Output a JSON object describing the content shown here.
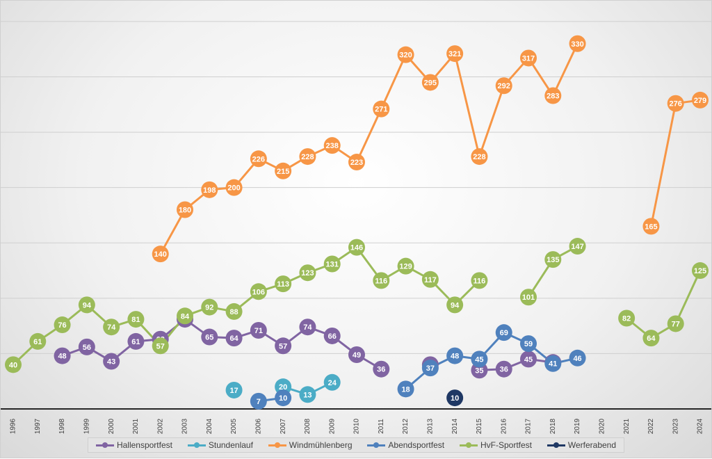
{
  "chart_data": {
    "type": "line",
    "x": [
      "1996",
      "1997",
      "1998",
      "1999",
      "2000",
      "2001",
      "2002",
      "2003",
      "2004",
      "2005",
      "2006",
      "2007",
      "2008",
      "2009",
      "2010",
      "2011",
      "2012",
      "2013",
      "2014",
      "2015",
      "2016",
      "2017",
      "2018",
      "2019",
      "2020",
      "2021",
      "2022",
      "2023",
      "2024"
    ],
    "ylim": [
      0,
      360
    ],
    "grid": true,
    "legend_position": "bottom",
    "series": [
      {
        "name": "Hallensportfest",
        "color": "#8064a2",
        "values": [
          null,
          null,
          48,
          56,
          43,
          61,
          63,
          81,
          65,
          64,
          71,
          57,
          74,
          66,
          49,
          36,
          null,
          40,
          null,
          35,
          36,
          45,
          42,
          null,
          null,
          null,
          null,
          null,
          null
        ]
      },
      {
        "name": "Stundenlauf",
        "color": "#4bacc6",
        "values": [
          null,
          null,
          null,
          null,
          null,
          null,
          null,
          null,
          null,
          17,
          null,
          20,
          13,
          24,
          null,
          null,
          null,
          null,
          null,
          null,
          null,
          null,
          null,
          null,
          null,
          null,
          null,
          null,
          null
        ]
      },
      {
        "name": "Windmühlenberg",
        "color": "#f79646",
        "values": [
          null,
          null,
          null,
          null,
          null,
          null,
          140,
          180,
          198,
          200,
          226,
          215,
          228,
          238,
          223,
          271,
          320,
          295,
          321,
          228,
          292,
          317,
          283,
          330,
          null,
          null,
          165,
          276,
          279
        ]
      },
      {
        "name": "Abendsportfest",
        "color": "#4f81bd",
        "values": [
          null,
          null,
          null,
          null,
          null,
          null,
          null,
          null,
          null,
          null,
          7,
          10,
          null,
          null,
          null,
          null,
          18,
          37,
          48,
          45,
          69,
          59,
          41,
          46,
          null,
          null,
          null,
          null,
          null
        ]
      },
      {
        "name": "HvF-Sportfest",
        "color": "#9bbb59",
        "values": [
          40,
          61,
          76,
          94,
          74,
          81,
          57,
          84,
          92,
          88,
          106,
          113,
          123,
          131,
          146,
          116,
          129,
          117,
          94,
          116,
          null,
          101,
          135,
          147,
          null,
          82,
          64,
          77,
          125
        ]
      },
      {
        "name": "Werferabend",
        "color": "#1f3864",
        "values": [
          null,
          null,
          null,
          null,
          null,
          null,
          null,
          null,
          null,
          null,
          null,
          null,
          null,
          null,
          null,
          null,
          null,
          null,
          10,
          null,
          null,
          null,
          null,
          null,
          null,
          null,
          null,
          null,
          null
        ]
      }
    ]
  }
}
